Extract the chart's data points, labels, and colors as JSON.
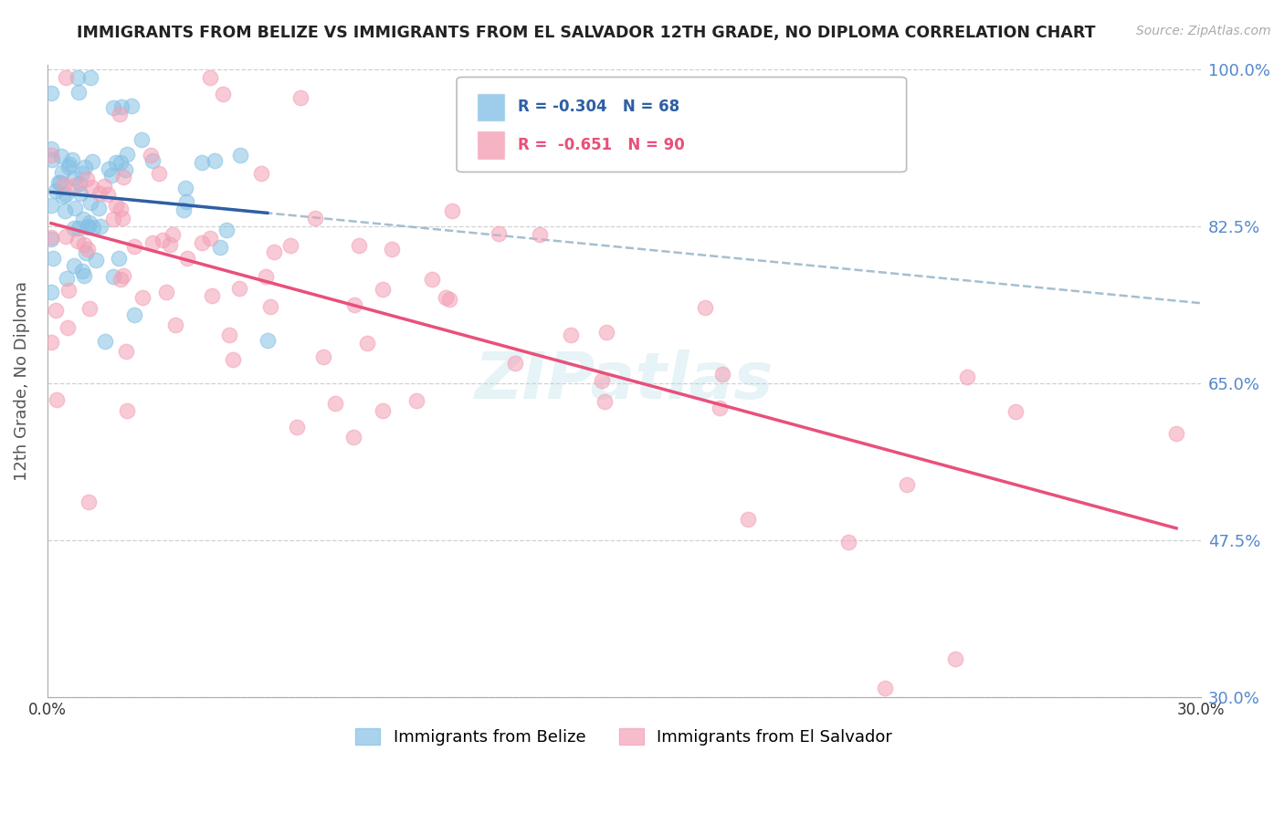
{
  "title": "IMMIGRANTS FROM BELIZE VS IMMIGRANTS FROM EL SALVADOR 12TH GRADE, NO DIPLOMA CORRELATION CHART",
  "source": "Source: ZipAtlas.com",
  "ylabel": "12th Grade, No Diploma",
  "xlim": [
    0.0,
    0.3
  ],
  "ylim": [
    0.3,
    1.005
  ],
  "xtick_positions": [
    0.0,
    0.05,
    0.1,
    0.15,
    0.2,
    0.25,
    0.3
  ],
  "ytick_positions": [
    1.0,
    0.825,
    0.65,
    0.475,
    0.3
  ],
  "yticklabels_right": [
    "100.0%",
    "82.5%",
    "65.0%",
    "47.5%",
    "30.0%"
  ],
  "belize_R": -0.304,
  "belize_N": 68,
  "salvador_R": -0.651,
  "salvador_N": 90,
  "belize_scatter_color": "#85c1e5",
  "salvador_scatter_color": "#f4a0b5",
  "belize_line_color": "#2e5fa3",
  "salvador_line_color": "#e8507a",
  "dashed_line_color": "#9ab8cc",
  "grid_color": "#cccccc",
  "right_tick_color": "#5588cc",
  "watermark_color": "#add8e6",
  "title_fontsize": 12.5,
  "label_fontsize": 12,
  "tick_fontsize": 12,
  "legend_fontsize": 12
}
